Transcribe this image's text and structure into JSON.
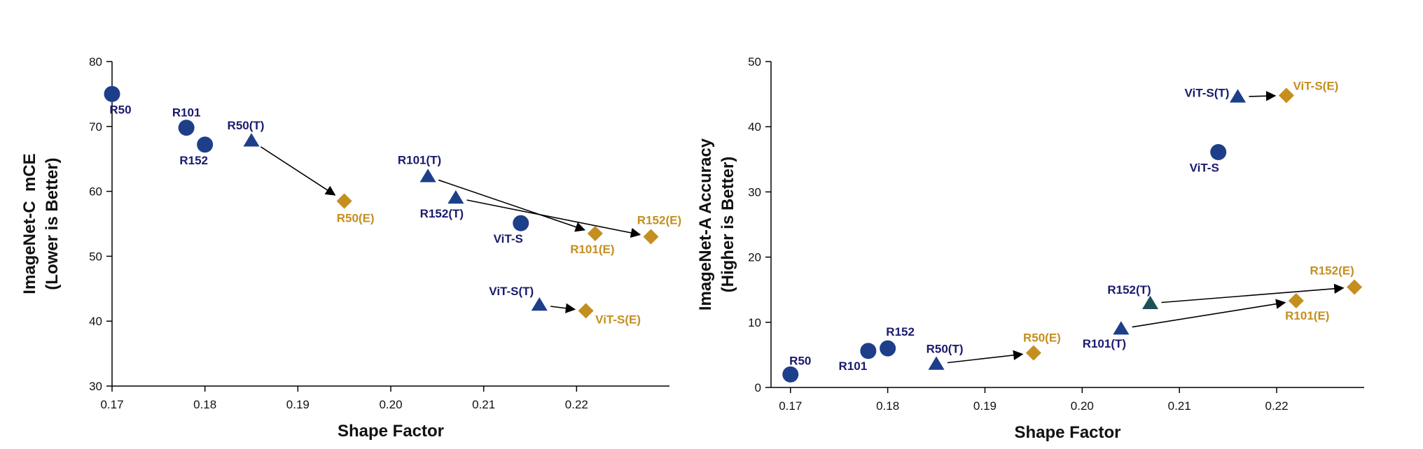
{
  "colors": {
    "tuned": "#1d3f8a",
    "tuned_dark": "#1f4f57",
    "ensemble": "#c48f1f",
    "tuned_label": "#1a1a6e",
    "ensemble_label": "#c48f1f"
  },
  "chart_data": [
    {
      "type": "scatter",
      "xlabel": "Shape Factor",
      "ylabel_lines": [
        "ImageNet-C  mCE",
        "(Lower is Better)"
      ],
      "xlim": [
        0.17,
        0.23
      ],
      "ylim": [
        30,
        80
      ],
      "xticks": [
        "0.17",
        "0.18",
        "0.19",
        "0.20",
        "0.21",
        "0.22"
      ],
      "yticks": [
        "30",
        "40",
        "50",
        "60",
        "70",
        "80"
      ],
      "points": [
        {
          "label": "R50",
          "x": 0.17,
          "y": 75.0,
          "shape": "circle",
          "color": "tuned"
        },
        {
          "label": "R101",
          "x": 0.178,
          "y": 69.8,
          "shape": "circle",
          "color": "tuned"
        },
        {
          "label": "R152",
          "x": 0.18,
          "y": 67.2,
          "shape": "circle",
          "color": "tuned"
        },
        {
          "label": "R50(T)",
          "x": 0.185,
          "y": 67.8,
          "shape": "triangle",
          "color": "tuned"
        },
        {
          "label": "R50(E)",
          "x": 0.195,
          "y": 58.5,
          "shape": "diamond",
          "color": "ensemble"
        },
        {
          "label": "R101(T)",
          "x": 0.204,
          "y": 62.3,
          "shape": "triangle",
          "color": "tuned"
        },
        {
          "label": "R152(T)",
          "x": 0.207,
          "y": 59.0,
          "shape": "triangle",
          "color": "tuned"
        },
        {
          "label": "ViT-S",
          "x": 0.214,
          "y": 55.1,
          "shape": "circle",
          "color": "tuned"
        },
        {
          "label": "R101(E)",
          "x": 0.222,
          "y": 53.5,
          "shape": "diamond",
          "color": "ensemble"
        },
        {
          "label": "R152(E)",
          "x": 0.228,
          "y": 53.0,
          "shape": "diamond",
          "color": "ensemble"
        },
        {
          "label": "ViT-S(T)",
          "x": 0.216,
          "y": 42.5,
          "shape": "triangle",
          "color": "tuned"
        },
        {
          "label": "ViT-S(E)",
          "x": 0.221,
          "y": 41.6,
          "shape": "diamond",
          "color": "ensemble"
        }
      ],
      "arrows": [
        {
          "from": "R50(T)",
          "to": "R50(E)"
        },
        {
          "from": "R101(T)",
          "to": "R101(E)"
        },
        {
          "from": "R152(T)",
          "to": "R152(E)"
        },
        {
          "from": "ViT-S(T)",
          "to": "ViT-S(E)"
        }
      ]
    },
    {
      "type": "scatter",
      "xlabel": "Shape Factor",
      "ylabel_lines": [
        "ImageNet-A Accuracy",
        "(Higher is Better)"
      ],
      "xlim": [
        0.168,
        0.229
      ],
      "ylim": [
        0,
        50
      ],
      "xticks": [
        "0.17",
        "0.18",
        "0.19",
        "0.20",
        "0.21",
        "0.22"
      ],
      "yticks": [
        "0",
        "10",
        "20",
        "30",
        "40",
        "50"
      ],
      "points": [
        {
          "label": "R50",
          "x": 0.17,
          "y": 2.0,
          "shape": "circle",
          "color": "tuned"
        },
        {
          "label": "R101",
          "x": 0.178,
          "y": 5.6,
          "shape": "circle",
          "color": "tuned"
        },
        {
          "label": "R152",
          "x": 0.18,
          "y": 6.0,
          "shape": "circle",
          "color": "tuned"
        },
        {
          "label": "R50(T)",
          "x": 0.185,
          "y": 3.6,
          "shape": "triangle",
          "color": "tuned"
        },
        {
          "label": "R50(E)",
          "x": 0.195,
          "y": 5.3,
          "shape": "diamond",
          "color": "ensemble"
        },
        {
          "label": "R101(T)",
          "x": 0.204,
          "y": 9.0,
          "shape": "triangle",
          "color": "tuned"
        },
        {
          "label": "R152(T)",
          "x": 0.207,
          "y": 12.9,
          "shape": "triangle",
          "color": "tuned_dark"
        },
        {
          "label": "R101(E)",
          "x": 0.222,
          "y": 13.3,
          "shape": "diamond",
          "color": "ensemble"
        },
        {
          "label": "R152(E)",
          "x": 0.228,
          "y": 15.4,
          "shape": "diamond",
          "color": "ensemble"
        },
        {
          "label": "ViT-S",
          "x": 0.214,
          "y": 36.1,
          "shape": "circle",
          "color": "tuned"
        },
        {
          "label": "ViT-S(T)",
          "x": 0.216,
          "y": 44.6,
          "shape": "triangle",
          "color": "tuned"
        },
        {
          "label": "ViT-S(E)",
          "x": 0.221,
          "y": 44.8,
          "shape": "diamond",
          "color": "ensemble"
        }
      ],
      "arrows": [
        {
          "from": "R50(T)",
          "to": "R50(E)"
        },
        {
          "from": "R101(T)",
          "to": "R101(E)"
        },
        {
          "from": "R152(T)",
          "to": "R152(E)"
        },
        {
          "from": "ViT-S(T)",
          "to": "ViT-S(E)"
        }
      ]
    }
  ]
}
